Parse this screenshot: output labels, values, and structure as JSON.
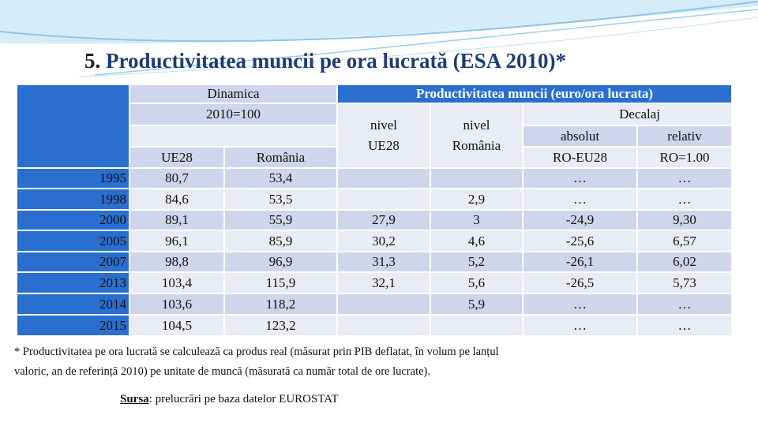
{
  "title": {
    "number": "5.",
    "text": "Productivitatea muncii pe ora lucrată (ESA 2010)*"
  },
  "table": {
    "header": {
      "dinamica": "Dinamica",
      "base": "2010=100",
      "productivitate": "Productivitatea muncii (euro/ora lucrata)",
      "decalaj": "Decalaj",
      "absolut": "absolut",
      "relativ": "relativ",
      "ue28": "UE28",
      "romania": "România",
      "nivel_ue28": [
        "nivel",
        "UE28"
      ],
      "nivel_romania": [
        "nivel",
        "România"
      ],
      "ro_eu28": "RO-EU28",
      "ro_1": "RO=1.00"
    },
    "rows": [
      [
        "1995",
        "80,7",
        "53,4",
        null,
        null,
        "…",
        "…"
      ],
      [
        "1998",
        "84,6",
        "53,5",
        null,
        "2,9",
        "…",
        "…"
      ],
      [
        "2000",
        "89,1",
        "55,9",
        "27,9",
        "3",
        "-24,9",
        "9,30"
      ],
      [
        "2005",
        "96,1",
        "85,9",
        "30,2",
        "4,6",
        "-25,6",
        "6,57"
      ],
      [
        "2007",
        "98,8",
        "96,9",
        "31,3",
        "5,2",
        "-26,1",
        "6,02"
      ],
      [
        "2013",
        "103,4",
        "115,9",
        "32,1",
        "5,6",
        "-26,5",
        "5,73"
      ],
      [
        "2014",
        "103,6",
        "118,2",
        null,
        "5,9",
        "…",
        "…"
      ],
      [
        "2015",
        "104,5",
        "123,2",
        null,
        null,
        "…",
        "…"
      ]
    ]
  },
  "footnote": [
    "* Productivitatea pe ora lucrată se calculează ca produs real (măsurat prin PIB deflatat, în volum pe lanțul",
    "valoric, an de referință 2010) pe unitate de muncă (măsurată ca număr total de ore lucrate)."
  ],
  "source": {
    "label": "Sursa",
    "text": ": prelucrări pe baza datelor EUROSTAT"
  }
}
